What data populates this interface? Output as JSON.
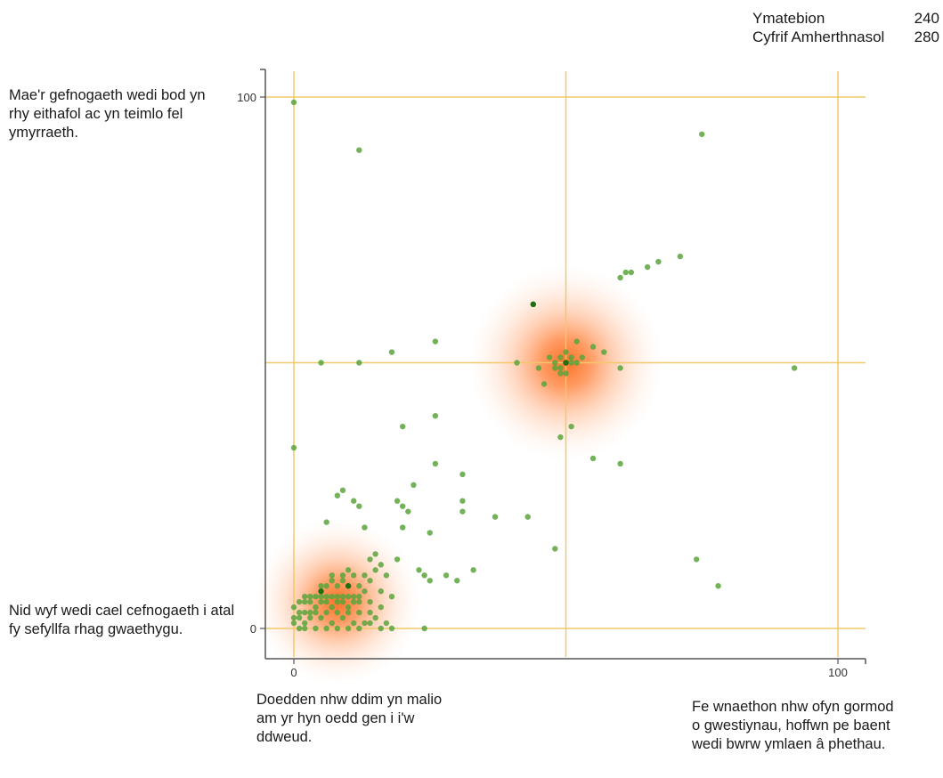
{
  "stats": {
    "responses_label": "Ymatebion",
    "responses_value": "240",
    "invalid_label": "Cyfrif Amherthnasol",
    "invalid_value": "280"
  },
  "corner_labels": {
    "top_left": "Mae'r gefnogaeth wedi bod yn rhy eithafol ac yn teimlo fel ymyrraeth.",
    "bottom_left": "Nid wyf wedi cael cefnogaeth i atal fy sefyllfa rhag gwaethygu.",
    "bottom_mid": "Doedden nhw ddim yn malio am yr hyn oedd gen i i'w ddweud.",
    "bottom_right": "Fe wnaethon nhw ofyn gormod o gwestiynau, hoffwn pe baent wedi bwrw ymlaen â phethau."
  },
  "colors": {
    "point": "#5aa43c",
    "point_dark": "#1f6f12",
    "heat": "#ff7a30",
    "gridline": "#f2c86a",
    "axis": "#555555"
  },
  "chart_data": {
    "type": "scatter",
    "title": "",
    "xlabel": "",
    "ylabel": "",
    "xlim": [
      0,
      100
    ],
    "ylim": [
      0,
      100
    ],
    "x_ticks": [
      "0",
      "100"
    ],
    "y_ticks": [
      "0",
      "100"
    ],
    "gridlines_x": [
      0,
      50,
      100
    ],
    "gridlines_y": [
      0,
      50,
      100
    ],
    "heat_centers": [
      {
        "x": 50,
        "y": 50,
        "intensity": 1.0
      },
      {
        "x": 8,
        "y": 5,
        "intensity": 0.85
      }
    ],
    "series": [
      {
        "points": [
          [
            0,
            99
          ],
          [
            12,
            90
          ],
          [
            75,
            93
          ],
          [
            60,
            66
          ],
          [
            61,
            67
          ],
          [
            62,
            67
          ],
          [
            65,
            68
          ],
          [
            67,
            69
          ],
          [
            71,
            70
          ],
          [
            44,
            61
          ],
          [
            26,
            54
          ],
          [
            18,
            52
          ],
          [
            5,
            50
          ],
          [
            12,
            50
          ],
          [
            52,
            54
          ],
          [
            55,
            53
          ],
          [
            57,
            52
          ],
          [
            45,
            49
          ],
          [
            41,
            50
          ],
          [
            46,
            46
          ],
          [
            48,
            49
          ],
          [
            49,
            51
          ],
          [
            50,
            48
          ],
          [
            51,
            50
          ],
          [
            52,
            50
          ],
          [
            50,
            52
          ],
          [
            49,
            49
          ],
          [
            51,
            51
          ],
          [
            48,
            50
          ],
          [
            50,
            50
          ],
          [
            49,
            48
          ],
          [
            47,
            51
          ],
          [
            53,
            51
          ],
          [
            60,
            49
          ],
          [
            92,
            49
          ],
          [
            51,
            38
          ],
          [
            49,
            36
          ],
          [
            55,
            32
          ],
          [
            60,
            31
          ],
          [
            26,
            40
          ],
          [
            20,
            38
          ],
          [
            0,
            34
          ],
          [
            26,
            31
          ],
          [
            31,
            29
          ],
          [
            22,
            27
          ],
          [
            19,
            24
          ],
          [
            21,
            22
          ],
          [
            9,
            26
          ],
          [
            8,
            25
          ],
          [
            11,
            24
          ],
          [
            12,
            23
          ],
          [
            20,
            23
          ],
          [
            31,
            24
          ],
          [
            31,
            22
          ],
          [
            37,
            21
          ],
          [
            43,
            21
          ],
          [
            6,
            20
          ],
          [
            13,
            19
          ],
          [
            20,
            19
          ],
          [
            25,
            18
          ],
          [
            48,
            15
          ],
          [
            15,
            14
          ],
          [
            14,
            13
          ],
          [
            19,
            13
          ],
          [
            16,
            12
          ],
          [
            33,
            11
          ],
          [
            24,
            10
          ],
          [
            28,
            10
          ],
          [
            25,
            9
          ],
          [
            30,
            9
          ],
          [
            23,
            11
          ],
          [
            74,
            13
          ],
          [
            78,
            8
          ],
          [
            10,
            11
          ],
          [
            7,
            10
          ],
          [
            9,
            10
          ],
          [
            11,
            10
          ],
          [
            13,
            10
          ],
          [
            5,
            8
          ],
          [
            6,
            8
          ],
          [
            7,
            9
          ],
          [
            8,
            8
          ],
          [
            9,
            9
          ],
          [
            10,
            8
          ],
          [
            12,
            8
          ],
          [
            14,
            9
          ],
          [
            15,
            11
          ],
          [
            17,
            10
          ],
          [
            2,
            6
          ],
          [
            3,
            6
          ],
          [
            4,
            6
          ],
          [
            5,
            6
          ],
          [
            6,
            6
          ],
          [
            7,
            6
          ],
          [
            8,
            6
          ],
          [
            9,
            6
          ],
          [
            10,
            6
          ],
          [
            11,
            6
          ],
          [
            12,
            6
          ],
          [
            13,
            7
          ],
          [
            16,
            7
          ],
          [
            18,
            6
          ],
          [
            1,
            5
          ],
          [
            2,
            5
          ],
          [
            3,
            5
          ],
          [
            4,
            4
          ],
          [
            5,
            5
          ],
          [
            6,
            5
          ],
          [
            7,
            4
          ],
          [
            8,
            5
          ],
          [
            9,
            5
          ],
          [
            10,
            4
          ],
          [
            11,
            5
          ],
          [
            12,
            5
          ],
          [
            14,
            5
          ],
          [
            0,
            4
          ],
          [
            1,
            3
          ],
          [
            2,
            3
          ],
          [
            3,
            3
          ],
          [
            4,
            3
          ],
          [
            6,
            3
          ],
          [
            8,
            3
          ],
          [
            10,
            3
          ],
          [
            12,
            3
          ],
          [
            14,
            3
          ],
          [
            16,
            4
          ],
          [
            0,
            2
          ],
          [
            1,
            2
          ],
          [
            2,
            1
          ],
          [
            3,
            2
          ],
          [
            5,
            2
          ],
          [
            7,
            1
          ],
          [
            9,
            2
          ],
          [
            11,
            1
          ],
          [
            13,
            1
          ],
          [
            15,
            2
          ],
          [
            17,
            1
          ],
          [
            24,
            0
          ],
          [
            0,
            1
          ],
          [
            1,
            0
          ],
          [
            2,
            0
          ],
          [
            4,
            0
          ],
          [
            6,
            0
          ],
          [
            8,
            0
          ],
          [
            10,
            0
          ],
          [
            12,
            0
          ],
          [
            14,
            1
          ],
          [
            16,
            0
          ],
          [
            18,
            0
          ]
        ]
      }
    ],
    "dark_points": [
      [
        44,
        61
      ],
      [
        5,
        7
      ],
      [
        10,
        8
      ],
      [
        50,
        50
      ]
    ]
  }
}
